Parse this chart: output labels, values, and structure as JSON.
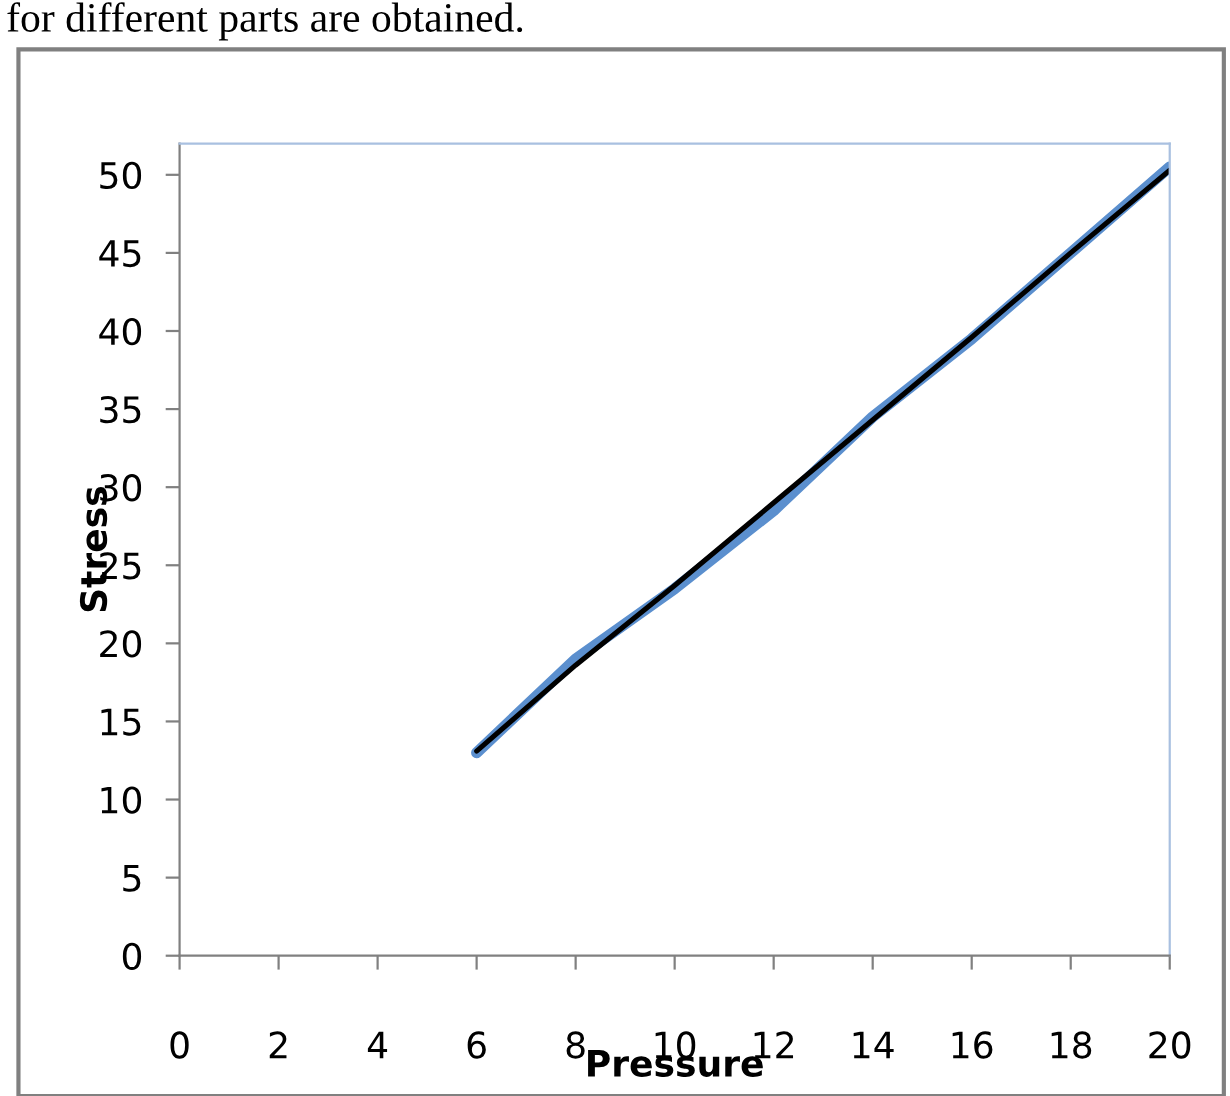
{
  "chart_data": {
    "type": "line",
    "xlabel": "Pressure",
    "ylabel": "Stress",
    "annotations": [
      "for different parts are obtained."
    ],
    "x": [
      6,
      8,
      10,
      12,
      14,
      16,
      18,
      20
    ],
    "series": [
      {
        "color": "#5b8fce",
        "values": [
          13,
          19,
          23.5,
          28.5,
          34.5,
          39.5,
          45,
          50.5
        ]
      },
      {
        "color": "#000000",
        "values": [
          13.1,
          18.6,
          23.7,
          29,
          34.3,
          39.6,
          45,
          50.3
        ]
      }
    ],
    "xlim": [
      0,
      20
    ],
    "xticks": [
      0,
      2,
      4,
      6,
      8,
      10,
      12,
      14,
      16,
      18,
      20
    ],
    "ylim": [
      0,
      52
    ],
    "yticks": [
      0,
      5,
      10,
      15,
      20,
      25,
      30,
      35,
      40,
      45,
      50
    ],
    "grid": false,
    "legend": false,
    "marker": "none",
    "line_style": "solid"
  }
}
